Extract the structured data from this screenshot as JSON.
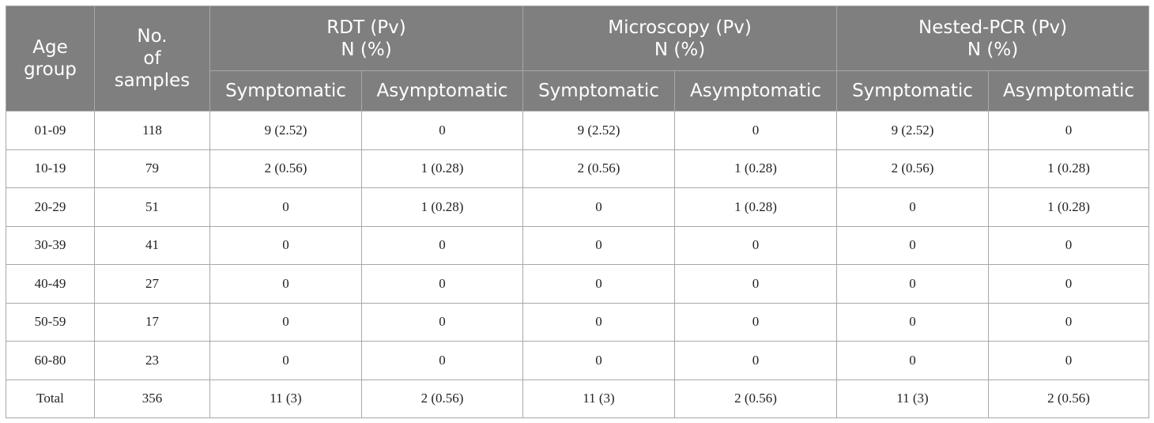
{
  "table": {
    "header": {
      "age_group": [
        "Age",
        "group"
      ],
      "num_samples": [
        "No.",
        "of",
        "samples"
      ],
      "groups": [
        {
          "name": "RDT (Pv)",
          "unit": "N (%)"
        },
        {
          "name": "Microscopy (Pv)",
          "unit": "N (%)"
        },
        {
          "name": "Nested-PCR (Pv)",
          "unit": "N (%)"
        }
      ],
      "sub": {
        "symptomatic": "Symptomatic",
        "asymptomatic": "Asymptomatic"
      }
    },
    "rows": [
      {
        "age": "01-09",
        "n": "118",
        "rdt_s": "9 (2.52)",
        "rdt_a": "0",
        "mic_s": "9 (2.52)",
        "mic_a": "0",
        "pcr_s": "9 (2.52)",
        "pcr_a": "0"
      },
      {
        "age": "10-19",
        "n": "79",
        "rdt_s": "2 (0.56)",
        "rdt_a": "1 (0.28)",
        "mic_s": "2 (0.56)",
        "mic_a": "1 (0.28)",
        "pcr_s": "2 (0.56)",
        "pcr_a": "1 (0.28)"
      },
      {
        "age": "20-29",
        "n": "51",
        "rdt_s": "0",
        "rdt_a": "1 (0.28)",
        "mic_s": "0",
        "mic_a": "1 (0.28)",
        "pcr_s": "0",
        "pcr_a": "1 (0.28)"
      },
      {
        "age": "30-39",
        "n": "41",
        "rdt_s": "0",
        "rdt_a": "0",
        "mic_s": "0",
        "mic_a": "0",
        "pcr_s": "0",
        "pcr_a": "0"
      },
      {
        "age": "40-49",
        "n": "27",
        "rdt_s": "0",
        "rdt_a": "0",
        "mic_s": "0",
        "mic_a": "0",
        "pcr_s": "0",
        "pcr_a": "0"
      },
      {
        "age": "50-59",
        "n": "17",
        "rdt_s": "0",
        "rdt_a": "0",
        "mic_s": "0",
        "mic_a": "0",
        "pcr_s": "0",
        "pcr_a": "0"
      },
      {
        "age": "60-80",
        "n": "23",
        "rdt_s": "0",
        "rdt_a": "0",
        "mic_s": "0",
        "mic_a": "0",
        "pcr_s": "0",
        "pcr_a": "0"
      },
      {
        "age": "Total",
        "n": "356",
        "rdt_s": "11 (3)",
        "rdt_a": "2 (0.56)",
        "mic_s": "11 (3)",
        "mic_a": "2 (0.56)",
        "pcr_s": "11 (3)",
        "pcr_a": "2 (0.56)"
      }
    ]
  }
}
